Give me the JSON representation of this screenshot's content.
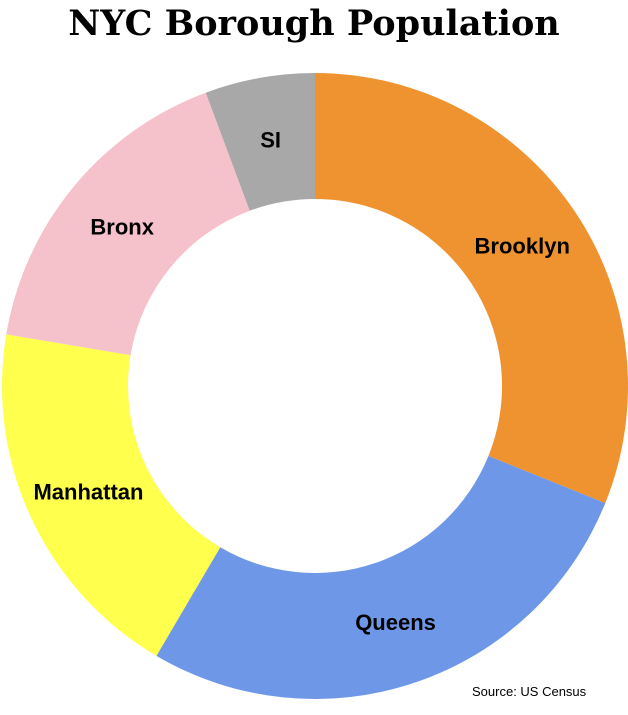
{
  "chart_data": {
    "type": "pie",
    "variant": "donut",
    "title": "NYC Borough Population",
    "categories": [
      "Brooklyn",
      "Queens",
      "Manhattan",
      "Bronx",
      "SI"
    ],
    "values": [
      2.74,
      2.41,
      1.69,
      1.47,
      0.5
    ],
    "colors": [
      "#ef9330",
      "#6f97e8",
      "#ffff4d",
      "#f5c1cb",
      "#a8a8a8"
    ],
    "start_angle": "12 o'clock",
    "direction": "clockwise",
    "legend": "none"
  },
  "source_note": "Source: US Census"
}
